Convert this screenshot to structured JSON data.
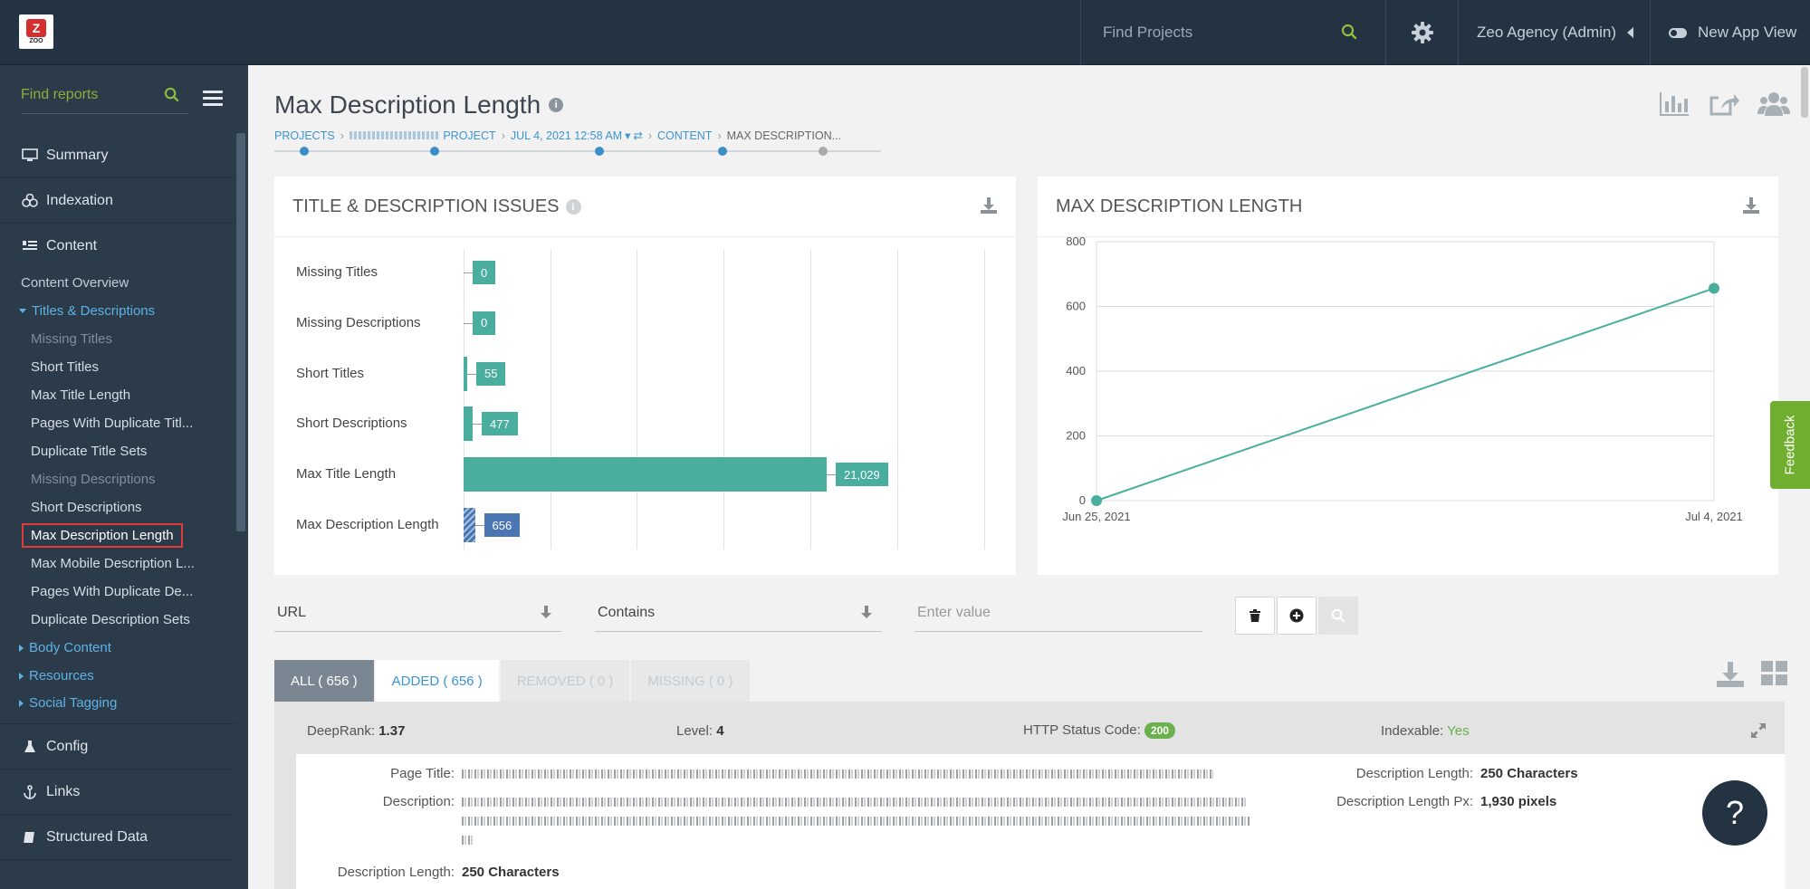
{
  "topbar": {
    "logo_text": "ZOO",
    "search_placeholder": "Find Projects",
    "account": "Zeo Agency (Admin)",
    "new_app_view": "New App View"
  },
  "sidebar": {
    "search_placeholder": "Find reports",
    "main_items": [
      "Summary",
      "Indexation",
      "Content"
    ],
    "content_overview": "Content Overview",
    "titles_desc": "Titles & Descriptions",
    "sub_items": [
      {
        "label": "Missing Titles",
        "state": "dim"
      },
      {
        "label": "Short Titles",
        "state": "normal"
      },
      {
        "label": "Max Title Length",
        "state": "normal"
      },
      {
        "label": "Pages With Duplicate Titl...",
        "state": "normal"
      },
      {
        "label": "Duplicate Title Sets",
        "state": "normal"
      },
      {
        "label": "Missing Descriptions",
        "state": "dim"
      },
      {
        "label": "Short Descriptions",
        "state": "normal"
      },
      {
        "label": "Max Description Length",
        "state": "active"
      },
      {
        "label": "Max Mobile Description L...",
        "state": "normal"
      },
      {
        "label": "Pages With Duplicate De...",
        "state": "normal"
      },
      {
        "label": "Duplicate Description Sets",
        "state": "normal"
      }
    ],
    "collapsed": [
      "Body Content",
      "Resources",
      "Social Tagging"
    ],
    "bottom_items": [
      "Config",
      "Links",
      "Structured Data"
    ]
  },
  "page": {
    "title": "Max Description Length",
    "breadcrumb": {
      "projects": "PROJECTS",
      "project": "PROJECT",
      "date": "JUL 4, 2021 12:58 AM",
      "content": "CONTENT",
      "current": "MAX DESCRIPTION..."
    }
  },
  "issues_card": {
    "title": "TITLE & DESCRIPTION ISSUES",
    "bars": [
      {
        "label": "Missing Titles",
        "value": 0,
        "value_label": "0"
      },
      {
        "label": "Missing Descriptions",
        "value": 0,
        "value_label": "0"
      },
      {
        "label": "Short Titles",
        "value": 55,
        "value_label": "55"
      },
      {
        "label": "Short Descriptions",
        "value": 477,
        "value_label": "477"
      },
      {
        "label": "Max Title Length",
        "value": 21029,
        "value_label": "21,029"
      },
      {
        "label": "Max Description Length",
        "value": 656,
        "value_label": "656",
        "highlight": true
      }
    ],
    "bar_color": "#4aae9f",
    "highlight_color": "#4a76b3"
  },
  "chart_card": {
    "title": "MAX DESCRIPTION LENGTH"
  },
  "chart_data": {
    "type": "line",
    "title": "MAX DESCRIPTION LENGTH",
    "x": [
      "Jun 25, 2021",
      "Jul 4, 2021"
    ],
    "values": [
      0,
      656
    ],
    "yticks": [
      0,
      200,
      400,
      600,
      800
    ],
    "ylim": [
      0,
      800
    ],
    "color": "#4aae9f",
    "grid": true
  },
  "filters": {
    "field": "URL",
    "operator": "Contains",
    "value_placeholder": "Enter value"
  },
  "tabs": [
    {
      "label": "ALL ( 656 )",
      "state": "active"
    },
    {
      "label": "ADDED ( 656 )",
      "state": "blue"
    },
    {
      "label": "REMOVED ( 0 )",
      "state": "dim"
    },
    {
      "label": "MISSING ( 0 )",
      "state": "dim"
    }
  ],
  "result": {
    "deeprank_label": "DeepRank:",
    "deeprank": "1.37",
    "level_label": "Level:",
    "level": "4",
    "http_label": "HTTP Status Code:",
    "http": "200",
    "indexable_label": "Indexable:",
    "indexable": "Yes",
    "page_title_label": "Page Title:",
    "description_label": "Description:",
    "desc_len_label": "Description Length:",
    "desc_len": "250 Characters",
    "desc_len_px_label": "Description Length Px:",
    "desc_len_px": "1,930 pixels",
    "desc_len_label2": "Description Length:",
    "desc_len2": "250 Characters"
  },
  "feedback": "Feedback",
  "help": "?"
}
